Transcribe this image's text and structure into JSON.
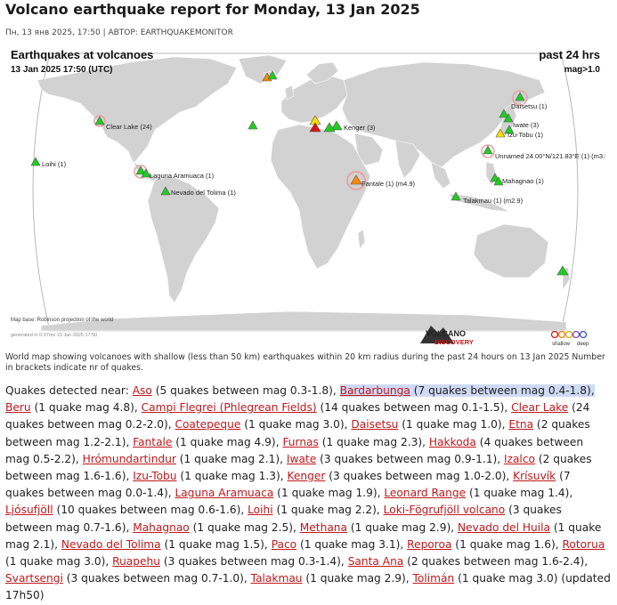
{
  "page": {
    "title": "Volcano earthquake report for Monday, 13 Jan 2025",
    "byline": "Пн, 13 янв 2025, 17:50 | АВТОР: EARTHQUAKEMONITOR"
  },
  "map": {
    "title": "Earthquakes at volcanoes",
    "subtitle": "13 Jan 2025 17:50 (UTC)",
    "period": "past 24 hrs",
    "magnitude": "mag>1.0",
    "map_base": "Map base: Robinson projection of the world",
    "generated": "generated in 0.07ms 13 Jan 2025 17:50",
    "logo_line1": "VOLCANO",
    "logo_line2": "DISCOVERY",
    "legend_left": "shallow",
    "legend_right": "deep",
    "labels": {
      "daisetsu": "Daisetsu (1)",
      "iwate": "Iwate (3)",
      "izu_tobu": "Izu-Tobu (1)",
      "clear_lake": "Clear Lake (24)",
      "kenger": "Kenger (3)",
      "unnamed": "Unnamed 24.00°N/121.83°E (1) (m3.5",
      "loihi": "Loihi (1)",
      "laguna": "Laguna Aramuaca (1)",
      "mahagnao": "Mahagnao (1)",
      "fantale": "Fantale (1) (m4.9)",
      "tolima": "Nevado del Tolima (1)",
      "talakmau": "Talakmau (1) (m2.9)"
    },
    "colors": {
      "ocean": "#ffffff",
      "land": "#d2d2d2",
      "frame": "#b8b8b8",
      "marker_green": "#22cc22",
      "marker_yellow": "#f5e000",
      "marker_orange": "#ff8a00",
      "marker_red": "#e01010",
      "ring": "#e8a0a0"
    }
  },
  "caption": "World map showing volcanoes with shallow (less than 50 km) earthquakes within 20 km radius during the past 24 hours on 13 Jan 2025 Number in brackets indicate nr of quakes.",
  "quakes": {
    "intro": "Quakes detected near:",
    "updated": "(updated 17h50)",
    "items": [
      {
        "name": "Aso",
        "detail": "(5 quakes between mag 0.3-1.8)"
      },
      {
        "name": "Bardarbunga",
        "detail": "(7 quakes between mag 0.4-1.8)"
      },
      {
        "name": "Beru",
        "detail": "(1 quake mag 4.8)"
      },
      {
        "name": "Campi Flegrei (Phlegrean Fields)",
        "detail": "(14 quakes between mag 0.1-1.5)"
      },
      {
        "name": "Clear Lake",
        "detail": "(24 quakes between mag 0.2-2.0)"
      },
      {
        "name": "Coatepeque",
        "detail": "(1 quake mag 3.0)"
      },
      {
        "name": "Daisetsu",
        "detail": "(1 quake mag 1.0)"
      },
      {
        "name": "Etna",
        "detail": "(2 quakes between mag 1.2-2.1)"
      },
      {
        "name": "Fantale",
        "detail": "(1 quake mag 4.9)"
      },
      {
        "name": "Furnas",
        "detail": "(1 quake mag 2.3)"
      },
      {
        "name": "Hakkoda",
        "detail": "(4 quakes between mag 0.5-2.2)"
      },
      {
        "name": "Hrómundartindur",
        "detail": "(1 quake mag 2.1)"
      },
      {
        "name": "Iwate",
        "detail": "(3 quakes between mag 0.9-1.1)"
      },
      {
        "name": "Izalco",
        "detail": "(2 quakes between mag 1.6-1.6)"
      },
      {
        "name": "Izu-Tobu",
        "detail": "(1 quake mag 1.3)"
      },
      {
        "name": "Kenger",
        "detail": "(3 quakes between mag 1.0-2.0)"
      },
      {
        "name": "Krísuvík",
        "detail": "(7 quakes between mag 0.0-1.4)"
      },
      {
        "name": "Laguna Aramuaca",
        "detail": "(1 quake mag 1.9)"
      },
      {
        "name": "Leonard Range",
        "detail": "(1 quake mag 1.4)"
      },
      {
        "name": "Ljósufjöll",
        "detail": "(10 quakes between mag 0.6-1.6)"
      },
      {
        "name": "Loihi",
        "detail": "(1 quake mag 2.2)"
      },
      {
        "name": "Loki-Fögrufjöll volcano",
        "detail": "(3 quakes between mag 0.7-1.6)"
      },
      {
        "name": "Mahagnao",
        "detail": "(1 quake mag 2.5)"
      },
      {
        "name": "Methana",
        "detail": "(1 quake mag 2.9)"
      },
      {
        "name": "Nevado del Huila",
        "detail": "(1 quake mag 2.1)"
      },
      {
        "name": "Nevado del Tolima",
        "detail": "(1 quake mag 1.5)"
      },
      {
        "name": "Paco",
        "detail": "(1 quake mag 3.1)"
      },
      {
        "name": "Reporoa",
        "detail": "(1 quake mag 1.6)"
      },
      {
        "name": "Rotorua",
        "detail": "(1 quake mag 3.0)"
      },
      {
        "name": "Ruapehu",
        "detail": "(3 quakes between mag 0.3-1.4)"
      },
      {
        "name": "Santa Ana",
        "detail": "(2 quakes between mag 1.6-2.4)"
      },
      {
        "name": "Svartsengi",
        "detail": "(3 quakes between mag 0.7-1.0)"
      },
      {
        "name": "Talakmau",
        "detail": "(1 quake mag 2.9)"
      },
      {
        "name": "Tolimán",
        "detail": "(1 quake mag 3.0)"
      }
    ]
  }
}
